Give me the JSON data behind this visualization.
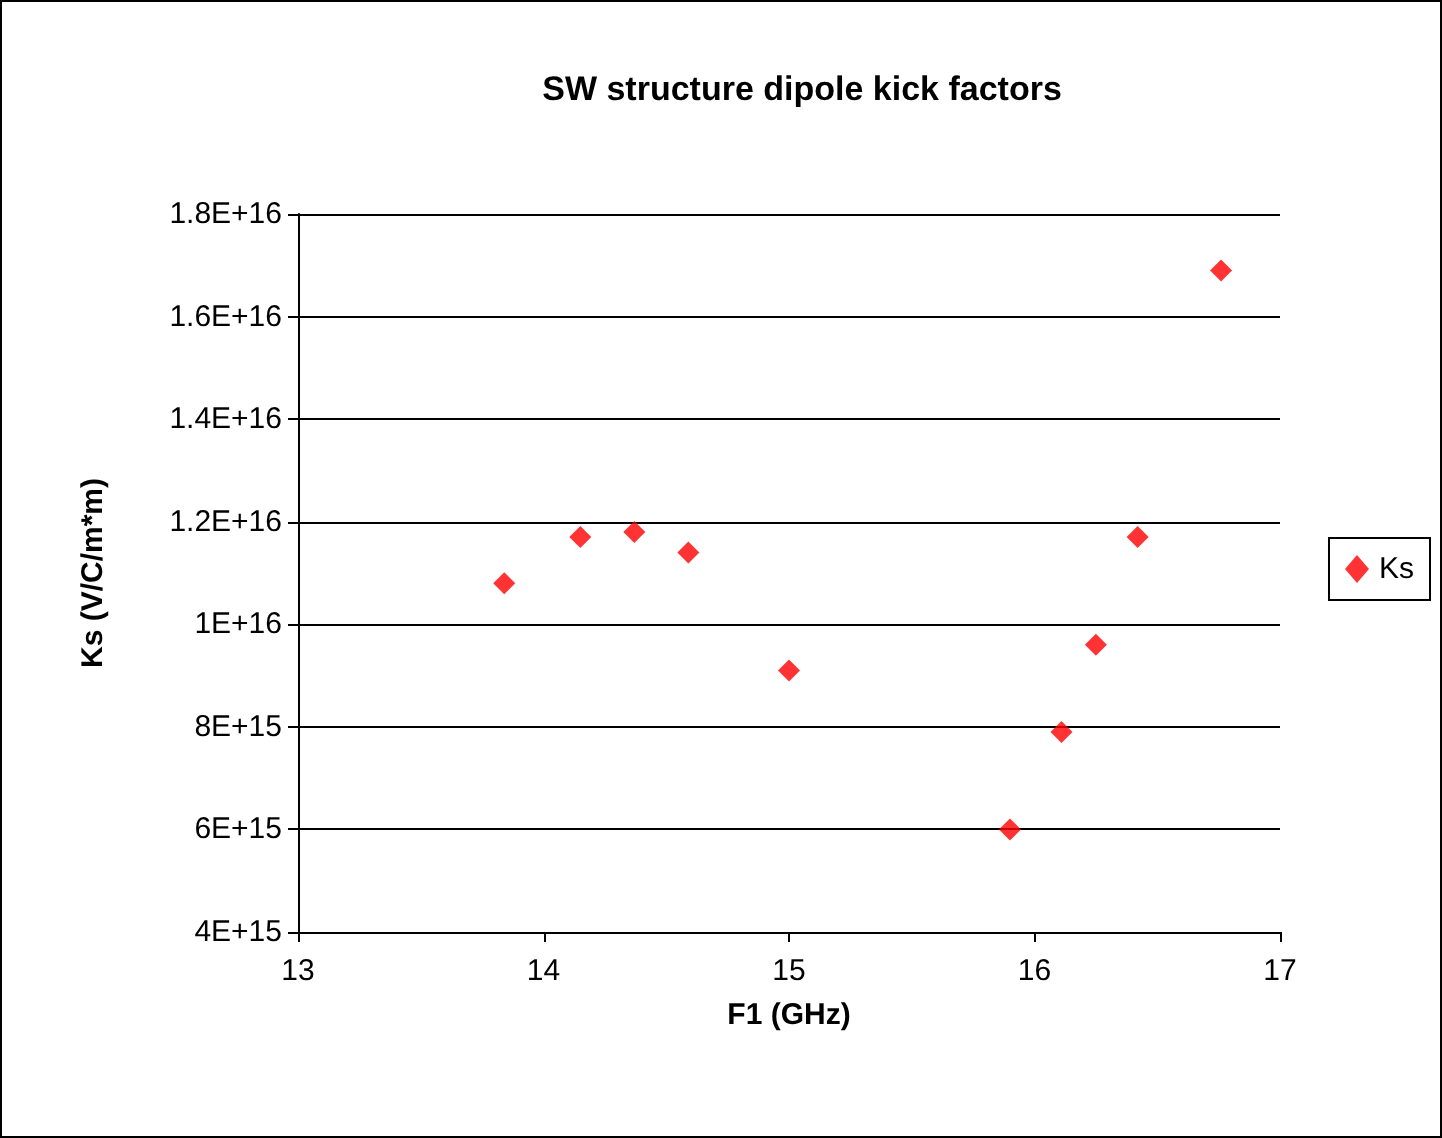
{
  "chart_data": {
    "type": "scatter",
    "title": "SW structure dipole kick factors",
    "xlabel": "F1 (GHz)",
    "ylabel": "Ks (V/C/m*m)",
    "x": [
      13.84,
      14.15,
      14.37,
      14.59,
      15.0,
      15.9,
      16.11,
      16.25,
      16.42,
      16.76
    ],
    "series": [
      {
        "name": "Ks",
        "color": "#ff0000",
        "values": [
          1.08e+16,
          1.17e+16,
          1.18e+16,
          1.14e+16,
          9100000000000000.0,
          6000000000000000.0,
          7900000000000000.0,
          9600000000000000.0,
          1.17e+16,
          1.69e+16
        ]
      }
    ],
    "xlim": [
      13,
      17
    ],
    "xticks": [
      13,
      14,
      15,
      16,
      17
    ],
    "ylim": [
      4000000000000000.0,
      1.8e+16
    ],
    "yticks": [
      {
        "value": 4000000000000000.0,
        "label": "4E+15"
      },
      {
        "value": 6000000000000000.0,
        "label": "6E+15"
      },
      {
        "value": 8000000000000000.0,
        "label": "8E+15"
      },
      {
        "value": 1e+16,
        "label": "1E+16"
      },
      {
        "value": 1.2e+16,
        "label": "1.2E+16"
      },
      {
        "value": 1.4e+16,
        "label": "1.4E+16"
      },
      {
        "value": 1.6e+16,
        "label": "1.6E+16"
      },
      {
        "value": 1.8e+16,
        "label": "1.8E+16"
      }
    ],
    "grid": "y",
    "legend": "right",
    "marker": "diamond"
  }
}
